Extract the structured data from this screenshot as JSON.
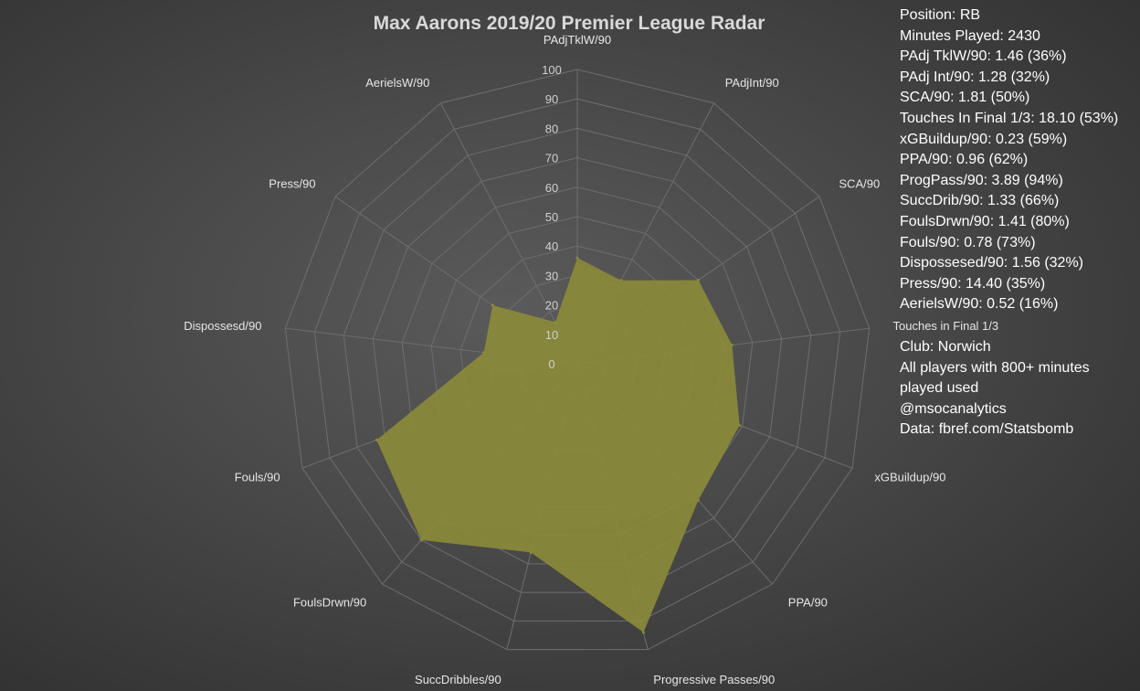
{
  "chart_data": {
    "type": "radar",
    "title": "Max Aarons 2019/20 Premier League Radar",
    "axes": [
      "PAdjTklW/90",
      "PAdjInt/90",
      "SCA/90",
      "Touches in Final 1/3",
      "xGBuildup/90",
      "PPA/90",
      "Progressive Passes/90",
      "SuccDribbles/90",
      "FoulsDrwn/90",
      "Fouls/90",
      "Dispossesd/90",
      "Press/90",
      "AerielsW/90"
    ],
    "values": [
      36,
      32,
      50,
      53,
      59,
      62,
      94,
      66,
      80,
      73,
      32,
      35,
      16
    ],
    "scale_ticks": [
      "0",
      "10",
      "20",
      "30",
      "40",
      "50",
      "60",
      "70",
      "80",
      "90",
      "100"
    ],
    "range": [
      0,
      100
    ],
    "fill_color": "#8a8a3a",
    "grid_color": "#6e6e6e"
  },
  "info_lines": [
    "Position: RB",
    "Minutes Played: 2430",
    "PAdj TklW/90: 1.46 (36%)",
    "PAdj Int/90: 1.28 (32%)",
    "SCA/90: 1.81 (50%)",
    "Touches In Final 1/3: 18.10 (53%)",
    "xGBuildup/90: 0.23 (59%)",
    "PPA/90: 0.96 (62%)",
    "ProgPass/90: 3.89 (94%)",
    "SuccDrib/90: 1.33 (66%)",
    "FoulsDrwn/90: 1.41 (80%)",
    "Fouls/90: 0.78 (73%)",
    "Dispossesed/90: 1.56 (32%)",
    "Press/90: 14.40 (35%)",
    "AerielsW/90: 0.52 (16%)"
  ],
  "footer_lines": [
    "Club: Norwich",
    "All players with 800+ minutes played used",
    "@msocanalytics",
    "Data: fbref.com/Statsbomb"
  ]
}
